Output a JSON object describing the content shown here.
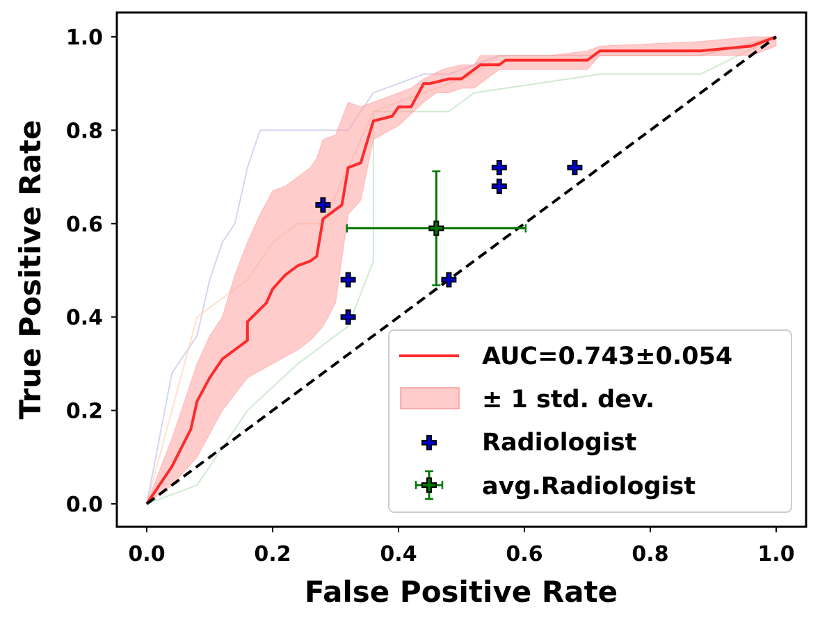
{
  "chart_data": {
    "type": "line",
    "xlabel": "False Positive Rate",
    "ylabel": "True Positive Rate",
    "xlim": [
      -0.05,
      1.05
    ],
    "ylim": [
      -0.05,
      1.05
    ],
    "xticks": [
      "0.0",
      "0.2",
      "0.4",
      "0.6",
      "0.8",
      "1.0"
    ],
    "yticks": [
      "0.0",
      "0.2",
      "0.4",
      "0.6",
      "0.8",
      "1.0"
    ],
    "grid": false,
    "legend_position": "lower-right",
    "colors": {
      "mean_roc": "#ff2a2a",
      "std_band": "#ff9999",
      "radiologist": "#0000cc",
      "avg_radiologist": "#007700",
      "chance": "#000000",
      "fold_1": "#b0b0e6",
      "fold_2": "#ffc8a0",
      "fold_3": "#a8dba8"
    },
    "legend": [
      {
        "label": "AUC=0.743±0.054",
        "kind": "line"
      },
      {
        "label": "± 1 std. dev.",
        "kind": "band"
      },
      {
        "label": "Radiologist",
        "kind": "marker"
      },
      {
        "label": "avg.Radiologist",
        "kind": "errorbar"
      }
    ],
    "mean_roc": {
      "x": [
        0,
        0.04,
        0.07,
        0.08,
        0.1,
        0.12,
        0.14,
        0.16,
        0.16,
        0.19,
        0.2,
        0.22,
        0.24,
        0.26,
        0.27,
        0.28,
        0.31,
        0.32,
        0.34,
        0.36,
        0.39,
        0.4,
        0.42,
        0.44,
        0.45,
        0.48,
        0.5,
        0.52,
        0.53,
        0.56,
        0.57,
        0.7,
        0.72,
        0.88,
        0.96,
        1.0
      ],
      "y": [
        0,
        0.08,
        0.16,
        0.22,
        0.27,
        0.31,
        0.33,
        0.35,
        0.39,
        0.43,
        0.46,
        0.49,
        0.51,
        0.52,
        0.53,
        0.61,
        0.64,
        0.72,
        0.73,
        0.82,
        0.83,
        0.85,
        0.85,
        0.9,
        0.9,
        0.91,
        0.91,
        0.93,
        0.94,
        0.94,
        0.95,
        0.95,
        0.97,
        0.97,
        0.98,
        1.0
      ]
    },
    "std_upper": {
      "x": [
        0,
        0.04,
        0.08,
        0.1,
        0.12,
        0.14,
        0.16,
        0.18,
        0.2,
        0.22,
        0.24,
        0.26,
        0.27,
        0.28,
        0.3,
        0.32,
        0.34,
        0.36,
        0.4,
        0.42,
        0.44,
        0.47,
        0.5,
        0.52,
        0.53,
        0.56,
        0.6,
        0.64,
        0.7,
        0.72,
        0.88,
        0.96,
        1.0
      ],
      "y": [
        0,
        0.14,
        0.3,
        0.36,
        0.4,
        0.49,
        0.56,
        0.62,
        0.67,
        0.68,
        0.7,
        0.72,
        0.74,
        0.78,
        0.79,
        0.86,
        0.85,
        0.86,
        0.88,
        0.89,
        0.91,
        0.93,
        0.94,
        0.94,
        0.96,
        0.96,
        0.96,
        0.96,
        0.97,
        0.98,
        0.99,
        1.0,
        1.0
      ]
    },
    "std_lower": {
      "x": [
        0,
        0.04,
        0.08,
        0.12,
        0.16,
        0.2,
        0.24,
        0.26,
        0.28,
        0.3,
        0.32,
        0.34,
        0.36,
        0.4,
        0.44,
        0.46,
        0.48,
        0.5,
        0.52,
        0.56,
        0.6,
        0.64,
        0.7,
        0.72,
        0.88,
        0.96,
        1.0
      ],
      "y": [
        0,
        0.04,
        0.1,
        0.2,
        0.27,
        0.3,
        0.33,
        0.35,
        0.38,
        0.43,
        0.62,
        0.65,
        0.78,
        0.81,
        0.86,
        0.88,
        0.88,
        0.89,
        0.89,
        0.93,
        0.93,
        0.93,
        0.93,
        0.96,
        0.96,
        0.96,
        0.98
      ]
    },
    "folds": [
      {
        "x": [
          0,
          0.04,
          0.08,
          0.1,
          0.12,
          0.14,
          0.16,
          0.18,
          0.2,
          0.22,
          0.24,
          0.26,
          0.28,
          0.32,
          0.34,
          0.36,
          0.44,
          0.48,
          0.56,
          0.72,
          0.88,
          1.0
        ],
        "y": [
          0,
          0.28,
          0.36,
          0.48,
          0.56,
          0.6,
          0.72,
          0.8,
          0.8,
          0.8,
          0.8,
          0.8,
          0.8,
          0.8,
          0.84,
          0.88,
          0.92,
          0.92,
          0.96,
          0.96,
          0.96,
          1.0
        ]
      },
      {
        "x": [
          0,
          0.04,
          0.08,
          0.12,
          0.16,
          0.2,
          0.24,
          0.28,
          0.32,
          0.36,
          0.44,
          0.52,
          0.56,
          0.72,
          0.88,
          1.0
        ],
        "y": [
          0,
          0.2,
          0.4,
          0.44,
          0.48,
          0.56,
          0.6,
          0.6,
          0.72,
          0.84,
          0.88,
          0.92,
          0.96,
          0.96,
          0.96,
          1.0
        ]
      },
      {
        "x": [
          0,
          0.08,
          0.12,
          0.16,
          0.24,
          0.28,
          0.32,
          0.36,
          0.36,
          0.4,
          0.48,
          0.52,
          0.72,
          0.88,
          1.0
        ],
        "y": [
          0,
          0.04,
          0.12,
          0.2,
          0.3,
          0.34,
          0.38,
          0.52,
          0.84,
          0.84,
          0.84,
          0.88,
          0.92,
          0.92,
          1.0
        ]
      }
    ],
    "chance_line": {
      "x": [
        0,
        1
      ],
      "y": [
        0,
        1
      ]
    },
    "radiologists": [
      {
        "x": 0.28,
        "y": 0.64
      },
      {
        "x": 0.32,
        "y": 0.48
      },
      {
        "x": 0.32,
        "y": 0.4
      },
      {
        "x": 0.48,
        "y": 0.48
      },
      {
        "x": 0.56,
        "y": 0.72
      },
      {
        "x": 0.56,
        "y": 0.68
      },
      {
        "x": 0.68,
        "y": 0.72
      }
    ],
    "avg_radiologist": {
      "x": 0.46,
      "y": 0.59,
      "xerr": 0.142,
      "yerr": 0.122
    }
  }
}
